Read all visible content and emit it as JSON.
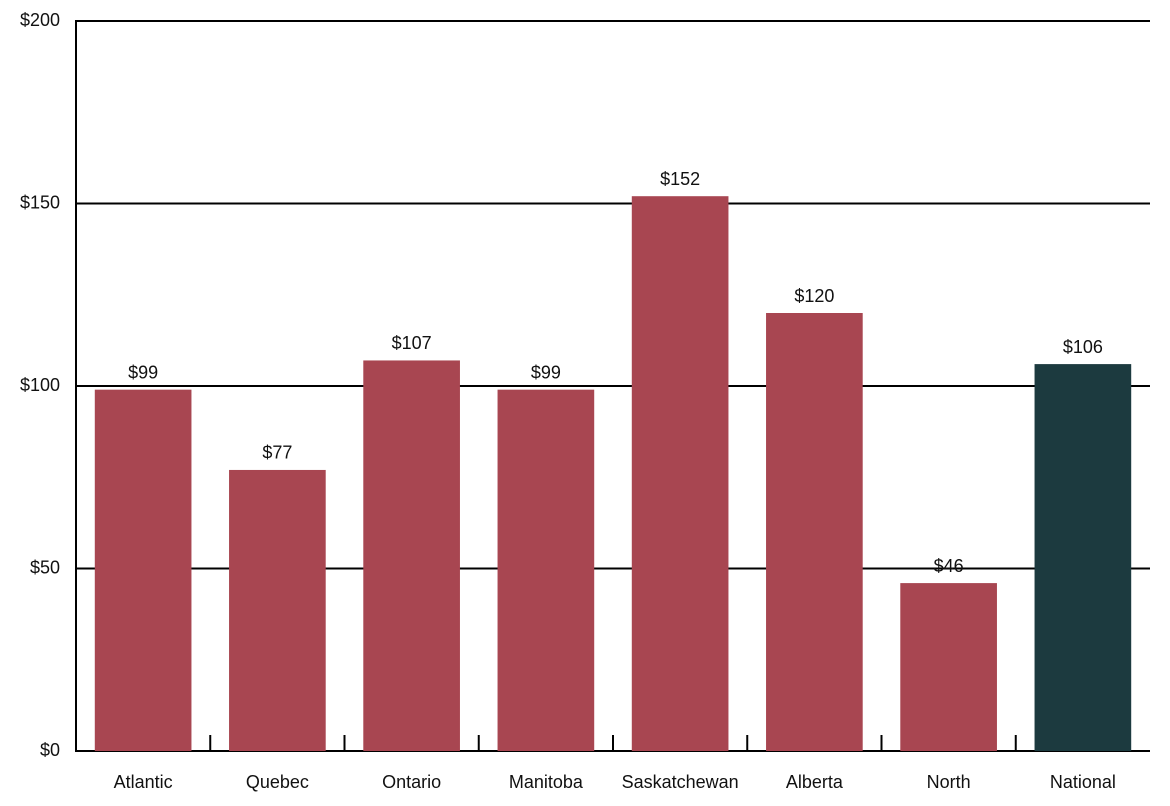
{
  "chart_data": {
    "type": "bar",
    "categories": [
      "Atlantic",
      "Quebec",
      "Ontario",
      "Manitoba",
      "Saskatchewan",
      "Alberta",
      "North",
      "National"
    ],
    "values": [
      99,
      77,
      107,
      99,
      152,
      120,
      46,
      106
    ],
    "value_labels": [
      "$99",
      "$77",
      "$107",
      "$99",
      "$152",
      "$120",
      "$46",
      "$106"
    ],
    "colors": [
      "#a84651",
      "#a84651",
      "#a84651",
      "#a84651",
      "#a84651",
      "#a84651",
      "#a84651",
      "#1c3a3f"
    ],
    "ylim": [
      0,
      200
    ],
    "yticks": [
      {
        "value": 0,
        "label": "$0"
      },
      {
        "value": 50,
        "label": "$50"
      },
      {
        "value": 100,
        "label": "$100"
      },
      {
        "value": 150,
        "label": "$150"
      },
      {
        "value": 200,
        "label": "$200"
      }
    ],
    "grid": true
  }
}
